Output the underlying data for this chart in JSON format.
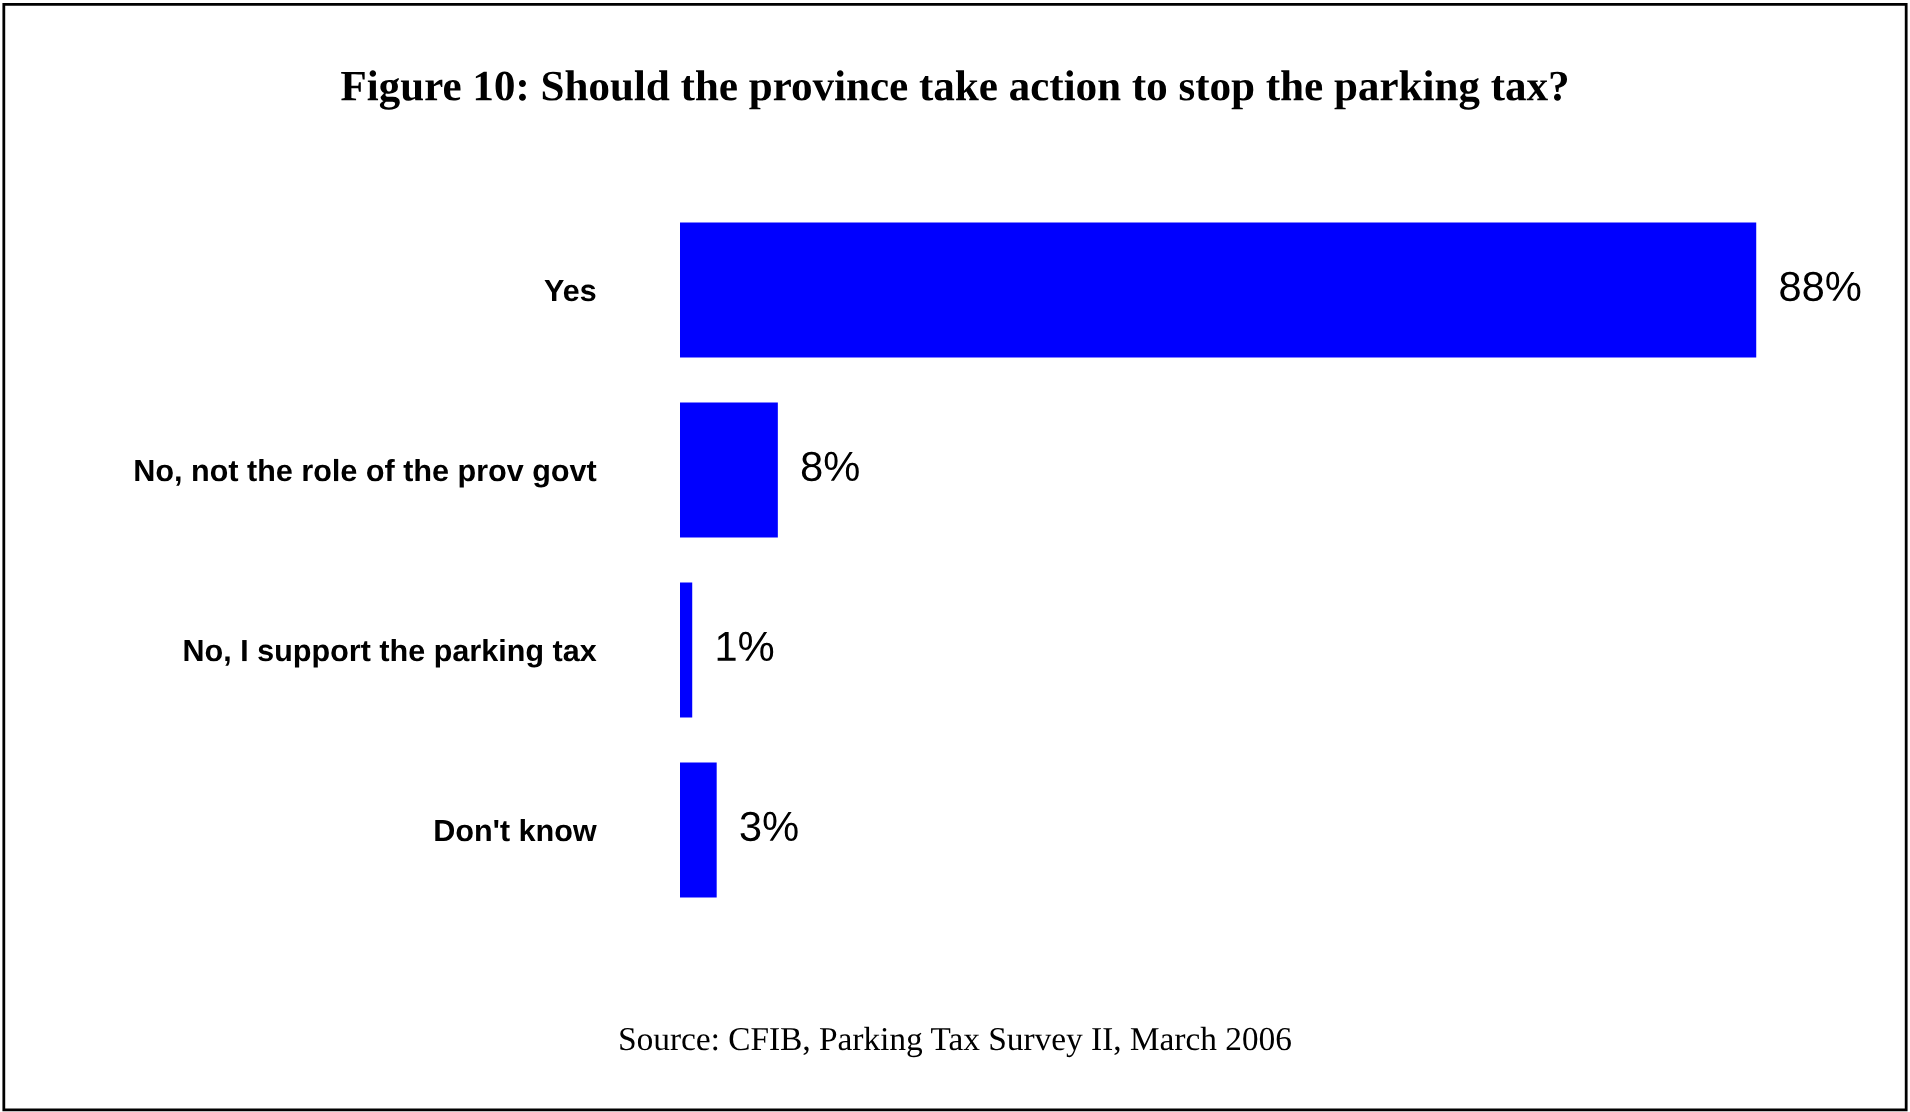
{
  "chart_data": {
    "type": "bar",
    "orientation": "horizontal",
    "title": "Figure 10: Should the province take action to stop the parking tax?",
    "categories": [
      "Yes",
      "No, not the role of the prov govt",
      "No, I support the parking tax",
      "Don't know"
    ],
    "values": [
      88,
      8,
      1,
      3
    ],
    "color": "#0000ff",
    "data_labels": true,
    "grid": false,
    "legend": false,
    "value_labels": [
      "88%",
      "8%",
      "1%",
      "3%"
    ],
    "annotations": [
      "Source: CFIB, Parking Tax Survey II, March 2006"
    ]
  }
}
